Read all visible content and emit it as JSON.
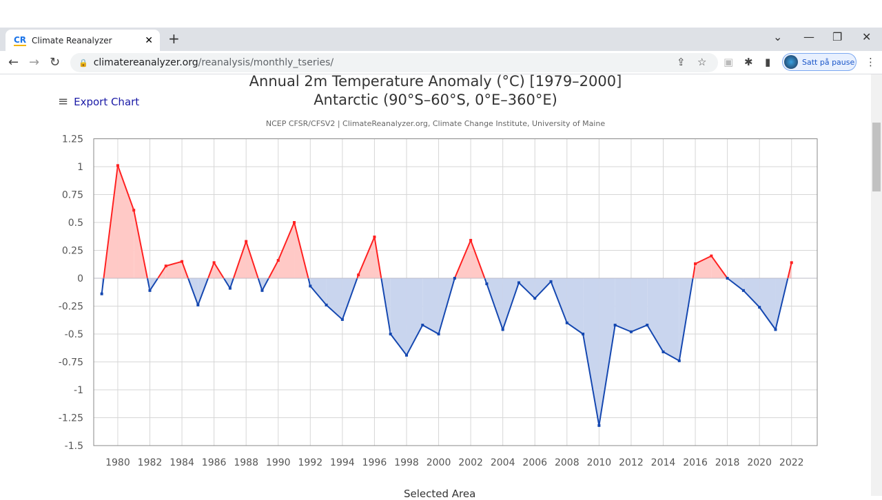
{
  "browser": {
    "tab_title": "Climate Reanalyzer",
    "tab_icon": "CR",
    "url_host": "climatereanalyzer.org",
    "url_path": "/reanalysis/monthly_tseries/",
    "profile_label": "Satt på pause"
  },
  "page": {
    "export_label": "Export Chart",
    "title_line1": "Annual 2m Temperature Anomaly (°C) [1979–2000]",
    "title_line2": "Antarctic (90°S–60°S, 0°E–360°E)",
    "subtitle": "NCEP CFSR/CFSV2 | ClimateReanalyzer.org, Climate Change Institute, University of Maine",
    "bottom_label": "Selected Area"
  },
  "chart_data": {
    "type": "area",
    "title": "Annual 2m Temperature Anomaly (°C) [1979–2000]",
    "subtitle": "Antarctic (90°S–60°S, 0°E–360°E)",
    "xlabel": "",
    "ylabel": "",
    "ylim": [
      -1.5,
      1.25
    ],
    "xlim": [
      1979,
      2022
    ],
    "grid": true,
    "positive_color": "#ff2020",
    "positive_fill": "#ffc9c6",
    "negative_color": "#1447b0",
    "negative_fill": "#c9d5ee",
    "y_ticks": [
      "1.25",
      "1",
      "0.75",
      "0.5",
      "0.25",
      "0",
      "-0.25",
      "-0.5",
      "-0.75",
      "-1",
      "-1.25",
      "-1.5"
    ],
    "x_ticks": [
      "1980",
      "1982",
      "1984",
      "1986",
      "1988",
      "1990",
      "1992",
      "1994",
      "1996",
      "1998",
      "2000",
      "2002",
      "2004",
      "2006",
      "2008",
      "2010",
      "2012",
      "2014",
      "2016",
      "2018",
      "2020",
      "2022"
    ],
    "x": [
      1979,
      1980,
      1981,
      1982,
      1983,
      1984,
      1985,
      1986,
      1987,
      1988,
      1989,
      1990,
      1991,
      1992,
      1993,
      1994,
      1995,
      1996,
      1997,
      1998,
      1999,
      2000,
      2001,
      2002,
      2003,
      2004,
      2005,
      2006,
      2007,
      2008,
      2009,
      2010,
      2011,
      2012,
      2013,
      2014,
      2015,
      2016,
      2017,
      2018,
      2019,
      2020,
      2021,
      2022
    ],
    "values": [
      -0.14,
      1.01,
      0.61,
      -0.11,
      0.11,
      0.15,
      -0.24,
      0.14,
      -0.09,
      0.33,
      -0.11,
      0.16,
      0.5,
      -0.07,
      -0.24,
      -0.37,
      0.03,
      0.37,
      -0.5,
      -0.69,
      -0.42,
      -0.5,
      0.0,
      0.34,
      -0.05,
      -0.46,
      -0.04,
      -0.18,
      -0.03,
      -0.4,
      -0.5,
      -1.32,
      -0.42,
      -0.48,
      -0.42,
      -0.66,
      -0.74,
      0.13,
      0.2,
      0.0,
      -0.11,
      -0.26,
      -0.46,
      0.14
    ]
  }
}
